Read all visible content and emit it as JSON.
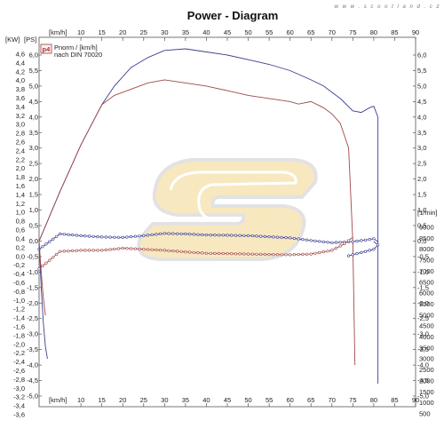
{
  "chart_data": {
    "type": "line",
    "title": "Power - Diagram",
    "watermark_text": "w w w . s c o o t l a n d . c z",
    "x_unit_label": "[km/h]",
    "x_ticks": [
      "10",
      "15",
      "20",
      "25",
      "30",
      "35",
      "40",
      "45",
      "50",
      "55",
      "60",
      "65",
      "70",
      "75",
      "80",
      "85",
      "90"
    ],
    "x_range": [
      0,
      90
    ],
    "left_unit_label": "[KW]",
    "left_ticks": [
      "4,6",
      "4,4",
      "4,2",
      "4,0",
      "3,8",
      "3,6",
      "3,4",
      "3,2",
      "3,0",
      "2,8",
      "2,6",
      "2,4",
      "2,2",
      "2,0",
      "1,8",
      "1,6",
      "1,4",
      "1,2",
      "1,0",
      "0,8",
      "0,6",
      "0,4",
      "0,2",
      "0,0",
      "-0,2",
      "-0,4",
      "-0,6",
      "-0,8",
      "-1,0",
      "-1,2",
      "-1,4",
      "-1,6",
      "-1,8",
      "-2,0",
      "-2,2",
      "-2,4",
      "-2,6",
      "-2,8",
      "-3,0",
      "-3,2",
      "-3,4",
      "-3,6"
    ],
    "left_range": [
      -3.6,
      4.6
    ],
    "ps_unit_label": "[PS]",
    "ps_ticks": [
      "6,0",
      "5,5",
      "5,0",
      "4,5",
      "4,0",
      "3,5",
      "3,0",
      "2,5",
      "2,0",
      "1,5",
      "1,0",
      "0,5",
      "0,0",
      "-0,5",
      "-1,0",
      "-1,5",
      "-2,0",
      "-2,5",
      "-3,0",
      "-3,5",
      "-4,0",
      "-4,5",
      "-5,0"
    ],
    "ps_range": [
      -5.0,
      6.0
    ],
    "rpm_unit_label": "[1/min]",
    "rpm_ticks": [
      "9000",
      "8500",
      "8000",
      "7500",
      "7000",
      "6500",
      "6000",
      "5500",
      "5000",
      "4500",
      "4000",
      "3500",
      "3000",
      "2500",
      "2000",
      "1500",
      "1000",
      "500"
    ],
    "rpm_range": [
      500,
      9000
    ],
    "legend": {
      "badge": "p4",
      "line1": "Pnorm / [km/h]",
      "line2": "nach DIN 70020"
    },
    "grid": false,
    "series": [
      {
        "color": "#3a3f8f",
        "axis": "ps",
        "x": [
          0,
          5,
          10,
          15,
          18,
          22,
          26,
          30,
          35,
          40,
          45,
          50,
          55,
          60,
          65,
          68,
          72,
          75,
          77,
          79,
          80,
          81,
          81,
          81
        ],
        "y": [
          0.0,
          1.6,
          3.1,
          4.4,
          5.0,
          5.6,
          5.92,
          6.15,
          6.2,
          6.1,
          6.0,
          5.85,
          5.7,
          5.5,
          5.2,
          5.0,
          4.6,
          4.2,
          4.15,
          4.3,
          4.35,
          4.0,
          0.0,
          -4.6
        ]
      },
      {
        "color": "#a04848",
        "axis": "ps",
        "x": [
          0,
          5,
          10,
          15,
          18,
          22,
          26,
          30,
          35,
          40,
          45,
          50,
          55,
          60,
          62,
          65,
          68,
          70,
          72,
          74,
          75,
          75.5
        ],
        "y": [
          0.0,
          1.6,
          3.1,
          4.4,
          4.7,
          4.9,
          5.1,
          5.2,
          5.1,
          5.0,
          4.85,
          4.7,
          4.6,
          4.5,
          4.42,
          4.5,
          4.3,
          4.1,
          3.8,
          3.0,
          0.0,
          -4.0
        ]
      },
      {
        "color": "#3a3f8f",
        "axis": "rpm",
        "marker": true,
        "x": [
          0,
          5,
          10,
          15,
          20,
          25,
          30,
          35,
          40,
          45,
          50,
          55,
          60,
          65,
          70,
          75,
          78,
          80,
          81
        ],
        "y": [
          8000,
          8700,
          8620,
          8560,
          8540,
          8620,
          8720,
          8700,
          8650,
          8640,
          8620,
          8570,
          8520,
          8400,
          8300,
          8350,
          8420,
          8480,
          8350
        ]
      },
      {
        "color": "#a04848",
        "axis": "rpm",
        "marker": true,
        "x": [
          0,
          5,
          10,
          15,
          20,
          25,
          30,
          35,
          40,
          45,
          50,
          55,
          60,
          65,
          70,
          73,
          75
        ],
        "y": [
          7100,
          7900,
          7950,
          7950,
          8050,
          8000,
          7950,
          7880,
          7820,
          7800,
          7780,
          7760,
          7750,
          7780,
          7950,
          8250,
          8550
        ]
      },
      {
        "color": "#3a3f8f",
        "axis": "rpm",
        "marker": true,
        "x": [
          74,
          76,
          78,
          80,
          81,
          80
        ],
        "y": [
          7700,
          7800,
          7900,
          8000,
          8200,
          8350
        ]
      },
      {
        "color": "#3a3f8f",
        "axis": "ps",
        "x": [
          0,
          0.5,
          1,
          1.5,
          2
        ],
        "y": [
          0.0,
          -1.5,
          -2.6,
          -3.4,
          -3.8
        ]
      },
      {
        "color": "#a04848",
        "axis": "ps",
        "x": [
          0,
          0.5,
          1,
          1.5
        ],
        "y": [
          0.0,
          -1.0,
          -1.8,
          -2.4
        ]
      }
    ]
  }
}
